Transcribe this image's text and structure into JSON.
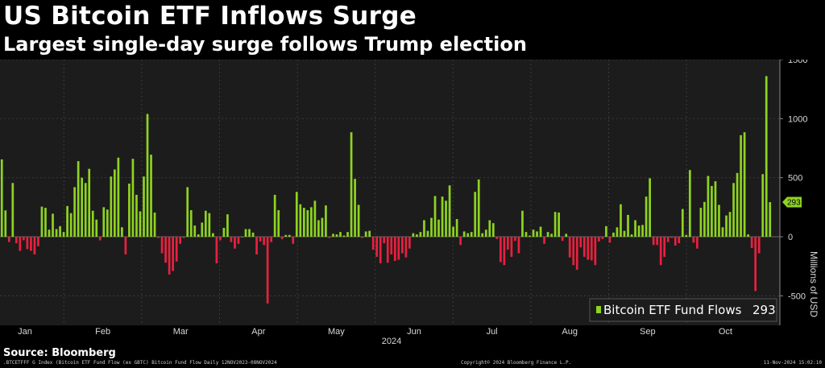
{
  "header": {
    "title": "US Bitcoin ETF Inflows Surge",
    "subtitle": "Largest single-day surge follows Trump election"
  },
  "source": "Source: Bloomberg",
  "footer": {
    "ticker": ".BTCETFFF G Index (Bitcoin ETF Fund Flow (ex GBTC) Bitcoin Fund Flow  Daily 12NOV2023-08NOV2024",
    "copyright": "Copyright© 2024 Bloomberg Finance L.P.",
    "timestamp": "11-Nov-2024 15:02:10"
  },
  "colors": {
    "positive": "#8ed321",
    "negative": "#e8213f",
    "background": "#1c1c1c",
    "grid": "#3a3a3a"
  },
  "chart_data": {
    "type": "bar",
    "ylabel": "Millions of USD",
    "ylim": [
      -750,
      1500
    ],
    "yticks": [
      -500,
      0,
      500,
      1000,
      1500
    ],
    "month_labels": [
      "Jan",
      "Feb",
      "Mar",
      "Apr",
      "May",
      "Jun",
      "Jul",
      "Aug",
      "Sep",
      "Oct"
    ],
    "year_label": "2024",
    "legend": "Bitcoin ETF Fund Flows",
    "last_value": "293",
    "series": [
      {
        "name": "Bitcoin ETF Fund Flows",
        "values": [
          655,
          223,
          -45,
          455,
          -55,
          -120,
          -30,
          -105,
          -120,
          -150,
          -80,
          255,
          245,
          60,
          195,
          65,
          90,
          40,
          260,
          200,
          420,
          640,
          500,
          455,
          575,
          220,
          145,
          -30,
          250,
          230,
          510,
          570,
          670,
          80,
          -150,
          450,
          660,
          355,
          215,
          510,
          1040,
          695,
          205,
          -10,
          -140,
          -220,
          -320,
          -290,
          -210,
          -60,
          -10,
          420,
          225,
          95,
          20,
          120,
          220,
          200,
          30,
          -225,
          -30,
          75,
          190,
          -45,
          -100,
          -60,
          0,
          65,
          65,
          35,
          -150,
          -40,
          -70,
          -565,
          -45,
          355,
          225,
          -20,
          15,
          15,
          -60,
          380,
          275,
          245,
          225,
          250,
          305,
          140,
          160,
          265,
          -10,
          25,
          20,
          40,
          10,
          40,
          885,
          490,
          270,
          -10,
          45,
          50,
          -110,
          -170,
          -225,
          -55,
          -220,
          -150,
          -205,
          -195,
          -140,
          -175,
          -100,
          30,
          20,
          40,
          140,
          50,
          160,
          345,
          145,
          340,
          305,
          435,
          85,
          150,
          -70,
          45,
          30,
          40,
          380,
          485,
          30,
          60,
          140,
          115,
          -20,
          -215,
          -240,
          -110,
          -170,
          -35,
          -140,
          220,
          40,
          10,
          60,
          45,
          85,
          -60,
          40,
          25,
          210,
          205,
          -35,
          25,
          -175,
          -240,
          -280,
          -90,
          -170,
          -195,
          -200,
          -240,
          -40,
          -20,
          90,
          -50,
          35,
          80,
          275,
          50,
          185,
          20,
          140,
          95,
          100,
          340,
          495,
          -70,
          -70,
          -240,
          -170,
          -45,
          -10,
          -75,
          -55,
          235,
          15,
          565,
          -50,
          -100,
          245,
          295,
          515,
          430,
          470,
          270,
          80,
          180,
          210,
          455,
          540,
          860,
          885,
          20,
          -95,
          -460,
          -140,
          530,
          1360,
          293
        ]
      }
    ]
  }
}
